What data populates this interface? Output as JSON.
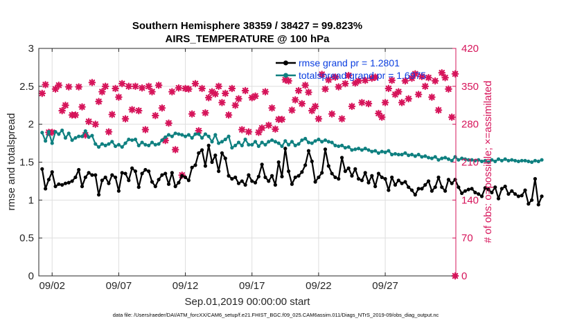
{
  "chart_data": {
    "type": "line",
    "title_line1": "Southern Hemisphere 38359 / 38427 = 99.823%",
    "title_line2": "AIRS_TEMPERATURE @ 100 hPa",
    "xlabel": "Sep.01,2019 00:00:00 start",
    "ylabel_left": "rmse and totalspread",
    "ylabel_right": "# of obs: o=possible; ×=assimilated",
    "ylim_left": [
      0,
      3
    ],
    "ylim_right": [
      0,
      420
    ],
    "xlim": [
      1,
      32.3
    ],
    "left_ticks": [
      "0",
      "0.5",
      "1",
      "1.5",
      "2",
      "2.5",
      "3"
    ],
    "right_ticks": [
      "0",
      "70",
      "140",
      "210",
      "280",
      "350",
      "420"
    ],
    "x_ticks": [
      {
        "x": 2,
        "label": "09/02"
      },
      {
        "x": 7,
        "label": "09/07"
      },
      {
        "x": 12,
        "label": "09/12"
      },
      {
        "x": 17,
        "label": "09/17"
      },
      {
        "x": 22,
        "label": "09/22"
      },
      {
        "x": 27,
        "label": "09/27"
      }
    ],
    "grid": true,
    "legend_position": "top-right",
    "colors": {
      "rmse": "#000000",
      "spread": "#0f8080",
      "obs": "#d6145a"
    },
    "series": [
      {
        "name": "rmse grand pr = 1.2801",
        "color": "#000000",
        "x0": 1.25,
        "dx": 0.25,
        "values": [
          1.41,
          1.15,
          1.27,
          1.37,
          1.18,
          1.21,
          1.2,
          1.22,
          1.23,
          1.25,
          1.3,
          1.4,
          1.18,
          1.3,
          1.36,
          1.33,
          1.33,
          1.07,
          1.26,
          1.3,
          1.22,
          1.33,
          1.3,
          1.12,
          1.36,
          1.35,
          1.26,
          1.42,
          1.38,
          1.17,
          1.35,
          1.4,
          1.38,
          1.24,
          1.18,
          1.27,
          1.33,
          1.35,
          1.21,
          1.36,
          1.18,
          1.23,
          1.32,
          1.3,
          1.26,
          1.43,
          1.46,
          1.62,
          1.66,
          1.45,
          1.72,
          1.5,
          1.59,
          1.38,
          1.62,
          1.55,
          1.32,
          1.28,
          1.3,
          1.22,
          1.25,
          1.2,
          1.33,
          1.25,
          1.23,
          1.31,
          1.47,
          1.3,
          1.25,
          1.32,
          1.2,
          1.5,
          1.31,
          1.68,
          1.38,
          1.21,
          1.3,
          1.32,
          1.37,
          1.46,
          1.65,
          1.51,
          1.24,
          1.3,
          1.36,
          1.67,
          1.45,
          1.35,
          1.3,
          1.28,
          1.56,
          1.38,
          1.42,
          1.32,
          1.41,
          1.28,
          1.26,
          1.36,
          1.23,
          1.32,
          1.18,
          1.35,
          1.3,
          1.28,
          1.13,
          1.3,
          1.2,
          1.26,
          1.22,
          1.24,
          1.17,
          1.13,
          1.07,
          1.15,
          1.15,
          1.2,
          1.25,
          1.12,
          1.17,
          1.3,
          1.17,
          1.12,
          1.27,
          1.22,
          1.27,
          1.17,
          1.09,
          1.12,
          1.14,
          1.15,
          1.1,
          1.08,
          1.05,
          1.16,
          1.14,
          1.1,
          1.17,
          1.02,
          1.15,
          1.18,
          1.08,
          1.12,
          1.08,
          1.05,
          1.06,
          1.13,
          0.95,
          1.0,
          1.28,
          0.94,
          1.05
        ]
      },
      {
        "name": "totalspread grand pr = 1.6975",
        "color": "#0f8080",
        "x0": 1.25,
        "dx": 0.25,
        "values": [
          1.89,
          1.78,
          1.9,
          1.75,
          1.9,
          1.87,
          1.92,
          1.82,
          1.88,
          1.79,
          1.82,
          1.84,
          1.84,
          1.91,
          1.83,
          1.85,
          1.74,
          1.7,
          1.74,
          1.72,
          1.74,
          1.77,
          1.71,
          1.73,
          1.7,
          1.75,
          1.8,
          1.79,
          1.8,
          1.72,
          1.76,
          1.73,
          1.72,
          1.76,
          1.73,
          1.74,
          1.79,
          1.83,
          1.86,
          1.84,
          1.88,
          1.87,
          1.86,
          1.84,
          1.86,
          1.82,
          1.87,
          1.87,
          1.82,
          1.87,
          1.84,
          1.77,
          1.86,
          1.75,
          1.77,
          1.8,
          1.84,
          1.69,
          1.72,
          1.76,
          1.72,
          1.8,
          1.73,
          1.73,
          1.77,
          1.71,
          1.76,
          1.73,
          1.77,
          1.79,
          1.77,
          1.75,
          1.71,
          1.78,
          1.73,
          1.77,
          1.72,
          1.74,
          1.79,
          1.81,
          1.76,
          1.75,
          1.78,
          1.8,
          1.77,
          1.79,
          1.77,
          1.76,
          1.72,
          1.71,
          1.72,
          1.69,
          1.7,
          1.66,
          1.67,
          1.68,
          1.66,
          1.68,
          1.66,
          1.64,
          1.65,
          1.62,
          1.64,
          1.63,
          1.65,
          1.6,
          1.61,
          1.6,
          1.6,
          1.62,
          1.59,
          1.6,
          1.58,
          1.6,
          1.57,
          1.58,
          1.56,
          1.55,
          1.57,
          1.53,
          1.55,
          1.56,
          1.54,
          1.52,
          1.57,
          1.53,
          1.55,
          1.54,
          1.53,
          1.53,
          1.52,
          1.53,
          1.51,
          1.52,
          1.5,
          1.53,
          1.51,
          1.54,
          1.52,
          1.54,
          1.52,
          1.53,
          1.52,
          1.51,
          1.52,
          1.52,
          1.51,
          1.5,
          1.52,
          1.51,
          1.53
        ]
      }
    ],
    "obs_points": [
      [
        1.25,
        337
      ],
      [
        1.5,
        353
      ],
      [
        1.75,
        265
      ],
      [
        2,
        265
      ],
      [
        2.25,
        345
      ],
      [
        2.5,
        352
      ],
      [
        2.75,
        305
      ],
      [
        3,
        315
      ],
      [
        3.25,
        349
      ],
      [
        3.5,
        297
      ],
      [
        3.75,
        297
      ],
      [
        4,
        349
      ],
      [
        4.25,
        312
      ],
      [
        4.5,
        260
      ],
      [
        4.75,
        285
      ],
      [
        5.0,
        357
      ],
      [
        5.25,
        280
      ],
      [
        5.5,
        322
      ],
      [
        5.75,
        340
      ],
      [
        6.0,
        350
      ],
      [
        6.25,
        266
      ],
      [
        6.5,
        298
      ],
      [
        6.75,
        346
      ],
      [
        7.0,
        330
      ],
      [
        7.25,
        355
      ],
      [
        7.5,
        290
      ],
      [
        7.75,
        350
      ],
      [
        8.0,
        307
      ],
      [
        8.25,
        350
      ],
      [
        8.5,
        305
      ],
      [
        8.75,
        347
      ],
      [
        9.0,
        270
      ],
      [
        9.25,
        350
      ],
      [
        9.5,
        340
      ],
      [
        9.75,
        296
      ],
      [
        10.0,
        352
      ],
      [
        10.25,
        310
      ],
      [
        10.5,
        250
      ],
      [
        10.75,
        282
      ],
      [
        11.0,
        340
      ],
      [
        11.25,
        233
      ],
      [
        11.5,
        347
      ],
      [
        11.75,
        186
      ],
      [
        12.0,
        346
      ],
      [
        12.25,
        345
      ],
      [
        12.5,
        299
      ],
      [
        12.75,
        355
      ],
      [
        13.0,
        268
      ],
      [
        13.25,
        346
      ],
      [
        13.5,
        301
      ],
      [
        13.75,
        329
      ],
      [
        14.0,
        340
      ],
      [
        14.25,
        336
      ],
      [
        14.5,
        350
      ],
      [
        14.75,
        320
      ],
      [
        15.0,
        337
      ],
      [
        15.25,
        297
      ],
      [
        15.5,
        346
      ],
      [
        15.75,
        315
      ],
      [
        16.0,
        327
      ],
      [
        16.25,
        270
      ],
      [
        16.5,
        342
      ],
      [
        16.75,
        266
      ],
      [
        17.0,
        329
      ],
      [
        17.25,
        332
      ],
      [
        17.5,
        265
      ],
      [
        17.75,
        273
      ],
      [
        18.0,
        340
      ],
      [
        18.25,
        278
      ],
      [
        18.5,
        310
      ],
      [
        18.75,
        271
      ],
      [
        19.0,
        289
      ],
      [
        19.25,
        289
      ],
      [
        19.5,
        362
      ],
      [
        19.75,
        360
      ],
      [
        20.0,
        306
      ],
      [
        20.25,
        325
      ],
      [
        20.5,
        342
      ],
      [
        20.75,
        318
      ],
      [
        21.0,
        352
      ],
      [
        21.25,
        339
      ],
      [
        21.5,
        305
      ],
      [
        21.75,
        313
      ],
      [
        22.0,
        290
      ],
      [
        22.25,
        372
      ],
      [
        22.5,
        345
      ],
      [
        22.75,
        362
      ],
      [
        23.0,
        299
      ],
      [
        23.25,
        367
      ],
      [
        23.5,
        349
      ],
      [
        23.75,
        290
      ],
      [
        24.0,
        355
      ],
      [
        24.25,
        370
      ],
      [
        24.5,
        313
      ],
      [
        24.75,
        356
      ],
      [
        25.0,
        360
      ],
      [
        25.25,
        320
      ],
      [
        25.5,
        361
      ],
      [
        25.75,
        318
      ],
      [
        26.0,
        365
      ],
      [
        26.25,
        367
      ],
      [
        26.5,
        300
      ],
      [
        26.75,
        293
      ],
      [
        27.0,
        320
      ],
      [
        27.25,
        346
      ],
      [
        27.5,
        361
      ],
      [
        27.75,
        335
      ],
      [
        28.0,
        340
      ],
      [
        28.25,
        320
      ],
      [
        28.5,
        360
      ],
      [
        28.75,
        327
      ],
      [
        29.0,
        365
      ],
      [
        29.25,
        373
      ],
      [
        29.5,
        335
      ],
      [
        29.75,
        368
      ],
      [
        30.0,
        350
      ],
      [
        30.25,
        366
      ],
      [
        30.5,
        330
      ],
      [
        30.75,
        360
      ],
      [
        31.0,
        306
      ],
      [
        31.25,
        375
      ],
      [
        31.5,
        366
      ],
      [
        31.75,
        345
      ],
      [
        32.0,
        293
      ],
      [
        32.25,
        373
      ]
    ],
    "obs_zero_point": [
      32.25,
      0
    ]
  },
  "footer": "data file: /Users/raeder/DAI/ATM_forcXX/CAM6_setup/f.e21.FHIST_BGC.f09_025.CAM6assim.011/Diags_NTrS_2019-09/obs_diag_output.nc"
}
